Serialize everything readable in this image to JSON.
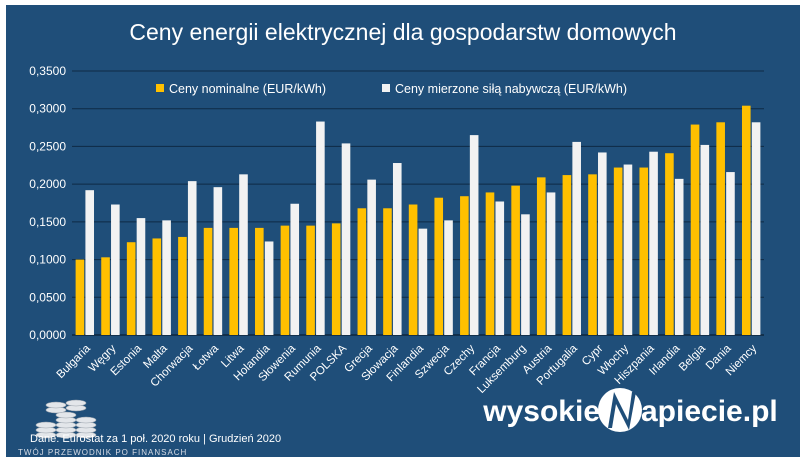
{
  "chart_data": {
    "type": "bar",
    "title": "Ceny energii elektrycznej dla gospodarstw domowych",
    "categories": [
      "Bułgaria",
      "Węgry",
      "Estonia",
      "Malta",
      "Chorwacja",
      "Łotwa",
      "Litwa",
      "Holandia",
      "Słowenia",
      "Rumunia",
      "POLSKA",
      "Grecja",
      "Słowacja",
      "Finlandia",
      "Szwecja",
      "Czechy",
      "Francja",
      "Luksemburg",
      "Austria",
      "Portugalia",
      "Cypr",
      "Włochy",
      "Hiszpania",
      "Irlandia",
      "Belgia",
      "Dania",
      "Niemcy"
    ],
    "series": [
      {
        "name": "Ceny nominalne (EUR/kWh)",
        "color": "#FFC000",
        "values": [
          0.1,
          0.103,
          0.123,
          0.128,
          0.13,
          0.142,
          0.142,
          0.142,
          0.145,
          0.145,
          0.148,
          0.168,
          0.168,
          0.173,
          0.182,
          0.184,
          0.189,
          0.198,
          0.209,
          0.212,
          0.213,
          0.222,
          0.222,
          0.241,
          0.279,
          0.282,
          0.304
        ]
      },
      {
        "name": "Ceny mierzone siłą nabywczą (EUR/kWh)",
        "color": "#F2F2F2",
        "values": [
          0.192,
          0.173,
          0.155,
          0.152,
          0.204,
          0.196,
          0.213,
          0.124,
          0.174,
          0.283,
          0.254,
          0.206,
          0.228,
          0.141,
          0.152,
          0.265,
          0.177,
          0.16,
          0.189,
          0.256,
          0.242,
          0.226,
          0.243,
          0.207,
          0.252,
          0.216,
          0.282
        ]
      }
    ],
    "ylim": [
      0,
      0.35
    ],
    "yticks": [
      "0,0000",
      "0,0500",
      "0,1000",
      "0,1500",
      "0,2000",
      "0,2500",
      "0,3000",
      "0,3500"
    ],
    "grid": true,
    "legend_position": "top",
    "background_color": "#1F4E79"
  },
  "footer": {
    "source": "Dane: Eurostat za 1 poł. 2020 roku  |  Grudzień 2020",
    "watermark": "TWÓJ PRZEWODNIK PO FINANSACH",
    "brand_left": "wysokie",
    "brand_right": "apiecie.pl"
  }
}
